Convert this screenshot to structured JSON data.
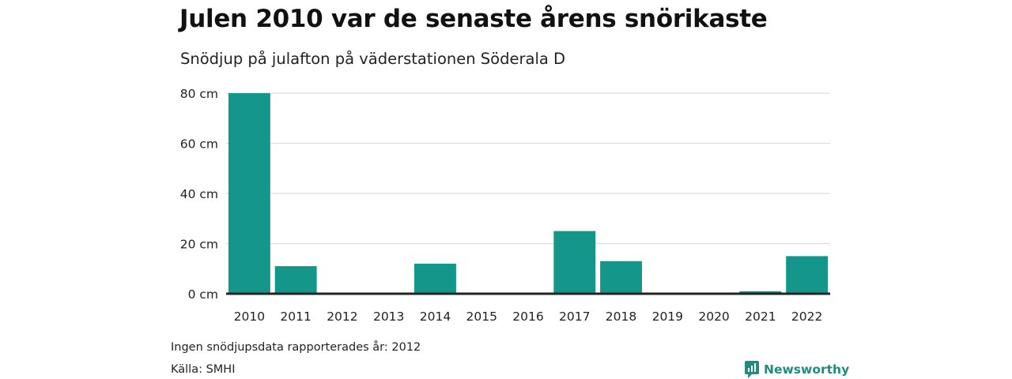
{
  "header": {
    "title": "Julen 2010 var de senaste årens snörikaste",
    "subtitle": "Snödjup på julafton på väderstationen Söderala D"
  },
  "footer": {
    "note": "Ingen snödjupsdata rapporterades år: 2012",
    "source": "Källa: SMHI",
    "brand": "Newsworthy"
  },
  "colors": {
    "bar": "#14968a",
    "grid": "#dddddd",
    "baseline": "#222222",
    "brand": "#1f8c7f"
  },
  "chart_data": {
    "type": "bar",
    "title": "Julen 2010 var de senaste årens snörikaste",
    "subtitle": "Snödjup på julafton på väderstationen Söderala D",
    "xlabel": "",
    "ylabel": "",
    "categories": [
      "2010",
      "2011",
      "2012",
      "2013",
      "2014",
      "2015",
      "2016",
      "2017",
      "2018",
      "2019",
      "2020",
      "2021",
      "2022"
    ],
    "values": [
      80,
      11,
      null,
      0,
      12,
      0,
      0,
      25,
      13,
      0,
      0,
      1,
      15
    ],
    "ylim": [
      0,
      80
    ],
    "yticks": [
      0,
      20,
      40,
      60,
      80
    ],
    "ytick_labels": [
      "0 cm",
      "20 cm",
      "40 cm",
      "60 cm",
      "80 cm"
    ],
    "grid": true,
    "legend": "none"
  }
}
